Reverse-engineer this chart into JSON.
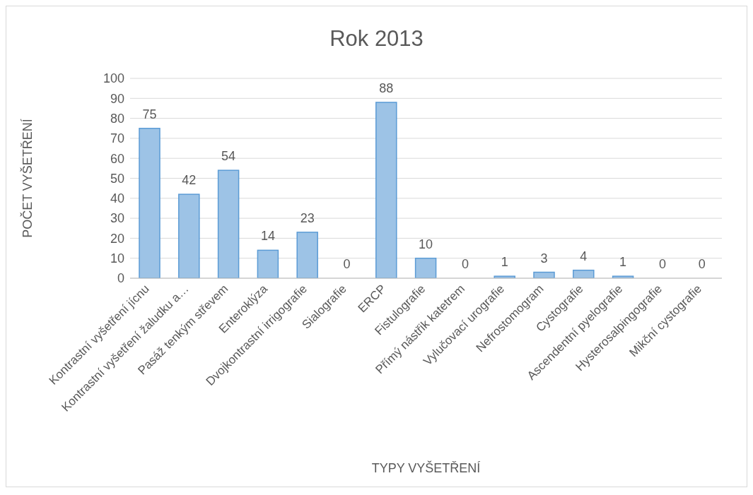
{
  "chart_data": {
    "type": "bar",
    "title": "Rok 2013",
    "xlabel": "TYPY VYŠETŘENÍ",
    "ylabel": "POČET VYŠETŘENÍ",
    "categories": [
      "Kontrastní vyšetření jícnu",
      "Kontrastní vyšetření žaludku a…",
      "Pasáž tenkým střevem",
      "Enteroklýza",
      "Dvojkontrastní irrigografie",
      "Sialografie",
      "ERCP",
      "Fistulografie",
      "Přímý nástřik katetrem",
      "Vylučovací urografie",
      "Nefrostomogram",
      "Cystografie",
      "Ascendentní pyelografie",
      "Hysterosalpingografie",
      "Mikční cystografie"
    ],
    "values": [
      75,
      42,
      54,
      14,
      23,
      0,
      88,
      10,
      0,
      1,
      3,
      4,
      1,
      0,
      0
    ],
    "color": "#9dc3e6",
    "ylim": [
      0,
      100
    ],
    "yticks": [
      0,
      10,
      20,
      30,
      40,
      50,
      60,
      70,
      80,
      90,
      100
    ],
    "grid": "y",
    "data_labels": true,
    "legend": false
  }
}
